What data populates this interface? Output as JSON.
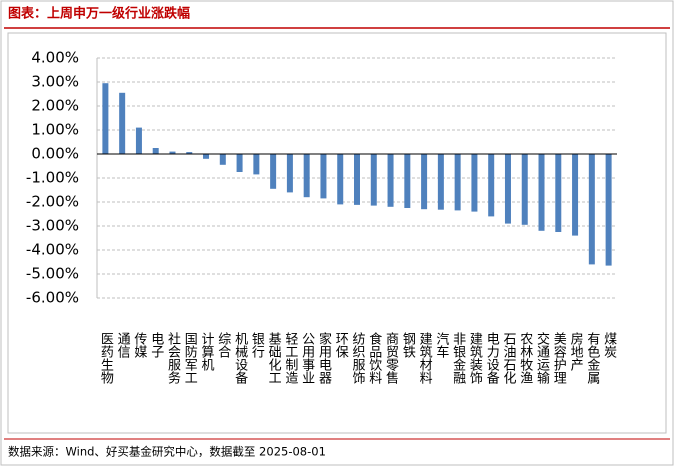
{
  "chart_data": {
    "type": "bar",
    "title": "图表：上周申万一级行业涨跌幅",
    "source": "数据来源：Wind、好买基金研究中心，数据截至 2025-08-01",
    "categories": [
      "医药生物",
      "通信",
      "传媒",
      "电子",
      "社会服务",
      "国防军工",
      "计算机",
      "综合",
      "机械设备",
      "银行",
      "基础化工",
      "轻工制造",
      "公用事业",
      "家用电器",
      "环保",
      "纺织服饰",
      "食品饮料",
      "商贸零售",
      "钢铁",
      "建筑材料",
      "汽车",
      "非银金融",
      "建筑装饰",
      "电力设备",
      "石油石化",
      "农林牧渔",
      "交通运输",
      "美容护理",
      "房地产",
      "有色金属",
      "煤炭"
    ],
    "values": [
      2.95,
      2.55,
      1.1,
      0.25,
      0.1,
      0.08,
      -0.2,
      -0.45,
      -0.75,
      -0.85,
      -1.45,
      -1.6,
      -1.8,
      -1.85,
      -2.1,
      -2.12,
      -2.15,
      -2.2,
      -2.25,
      -2.3,
      -2.32,
      -2.35,
      -2.4,
      -2.6,
      -2.9,
      -2.95,
      -3.2,
      -3.25,
      -3.4,
      -4.6,
      -4.65
    ],
    "color": "#4f81bd",
    "ylim": [
      -6,
      4
    ],
    "yticks": [
      {
        "value": 4,
        "label": "4.00%"
      },
      {
        "value": 3,
        "label": "3.00%"
      },
      {
        "value": 2,
        "label": "2.00%"
      },
      {
        "value": 1,
        "label": "1.00%"
      },
      {
        "value": 0,
        "label": "0.00%"
      },
      {
        "value": -1,
        "label": "-1.00%"
      },
      {
        "value": -2,
        "label": "-2.00%"
      },
      {
        "value": -3,
        "label": "-3.00%"
      },
      {
        "value": -4,
        "label": "-4.00%"
      },
      {
        "value": -5,
        "label": "-5.00%"
      },
      {
        "value": -6,
        "label": "-6.00%"
      }
    ],
    "grid": true
  }
}
